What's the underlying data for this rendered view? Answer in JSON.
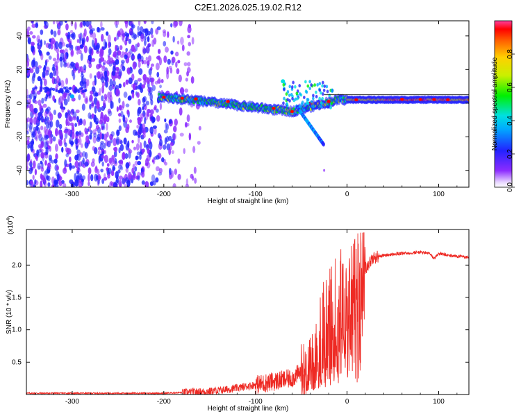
{
  "figure_title": "C2E1.2026.025.19.02.R12",
  "chart_data": [
    {
      "type": "heatmap",
      "title": "C2E1.2026.025.19.02.R12",
      "xlabel": "Height of straight line (km)",
      "ylabel": "Frequency (Hz)",
      "xlim": [
        -350,
        133
      ],
      "ylim": [
        -50,
        49
      ],
      "xticks": [
        -300,
        -200,
        -100,
        0,
        100
      ],
      "xtick_labels": [
        "-300",
        "-200",
        "-100",
        "0",
        "100"
      ],
      "yticks": [
        -40,
        -20,
        0,
        20,
        40
      ],
      "ytick_labels": [
        "-40",
        "-20",
        "0",
        "20",
        "40"
      ],
      "colorbar": {
        "label": "Normalized spectral amplitude",
        "range": [
          0,
          1
        ],
        "ticks": [
          0.0,
          0.2,
          0.4,
          0.6,
          0.8
        ],
        "tick_labels": [
          "0.0",
          "0.2",
          "0.4",
          "0.6",
          "0.8"
        ]
      },
      "features": {
        "noise_region_km": [
          -350,
          -160
        ],
        "signal_start_km": -205,
        "signal_frequency_at_start_hz": 4,
        "signal_frequency_near_minus50km_hz": -5,
        "branch_end_km": -25,
        "branch_end_frequency_hz": -25,
        "stable_signal_frequency_hz": 2,
        "left_noise_band_frequency_hz": 8
      }
    },
    {
      "type": "line",
      "xlabel": "Height of straight line (km)",
      "ylabel": "SNR (10 * v/v)",
      "multiplier_base": "(x10",
      "multiplier_exp": "4",
      "multiplier_end": ")",
      "xlim": [
        -350,
        133
      ],
      "ylim": [
        0,
        2.55
      ],
      "xticks": [
        -300,
        -200,
        -100,
        0,
        100
      ],
      "xtick_labels": [
        "-300",
        "-200",
        "-100",
        "0",
        "100"
      ],
      "yticks": [
        0.5,
        1.0,
        1.5,
        2.0
      ],
      "ytick_labels": [
        "0.5",
        "1.0",
        "1.5",
        "2.0"
      ],
      "series": [
        {
          "name": "SNR",
          "color": "#ee2a24",
          "x": [
            -350,
            -300,
            -250,
            -200,
            -180,
            -160,
            -140,
            -120,
            -100,
            -80,
            -60,
            -50,
            -40,
            -30,
            -20,
            -10,
            0,
            5,
            10,
            15,
            20,
            25,
            30,
            40,
            60,
            80,
            90,
            95,
            100,
            110,
            133
          ],
          "y": [
            0.02,
            0.02,
            0.02,
            0.02,
            0.03,
            0.04,
            0.06,
            0.1,
            0.15,
            0.2,
            0.25,
            0.35,
            0.45,
            0.8,
            1.1,
            1.3,
            1.5,
            1.4,
            1.8,
            1.7,
            1.95,
            2.05,
            2.12,
            2.15,
            2.18,
            2.2,
            2.18,
            2.1,
            2.18,
            2.15,
            2.12
          ]
        }
      ]
    }
  ]
}
